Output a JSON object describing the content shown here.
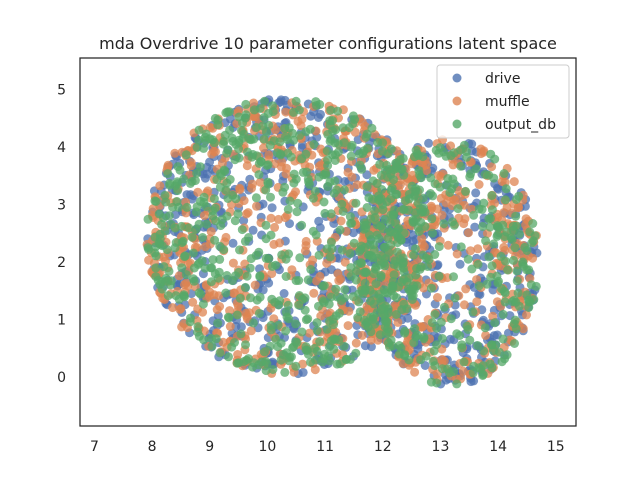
{
  "chart_data": {
    "type": "scatter",
    "title": "mda Overdrive 10 parameter configurations latent space",
    "xlabel": "",
    "ylabel": "",
    "xlim": [
      6.75,
      15.35
    ],
    "ylim": [
      -0.85,
      5.55
    ],
    "xticks": [
      7,
      8,
      9,
      10,
      11,
      12,
      13,
      14,
      15
    ],
    "yticks": [
      0,
      1,
      2,
      3,
      4,
      5
    ],
    "grid": false,
    "legend_position": "top-right",
    "point_alpha": 0.75,
    "points_per_series": 900,
    "clusters": [
      {
        "cx": 10.35,
        "cy": 2.45,
        "rx": 2.45,
        "ry": 2.4
      },
      {
        "cx": 13.15,
        "cy": 2.0,
        "rx": 1.55,
        "ry": 2.15
      }
    ],
    "series": [
      {
        "name": "drive",
        "color": "#4c72b0"
      },
      {
        "name": "muffle",
        "color": "#dd8452"
      },
      {
        "name": "output_db",
        "color": "#55a868"
      }
    ]
  }
}
